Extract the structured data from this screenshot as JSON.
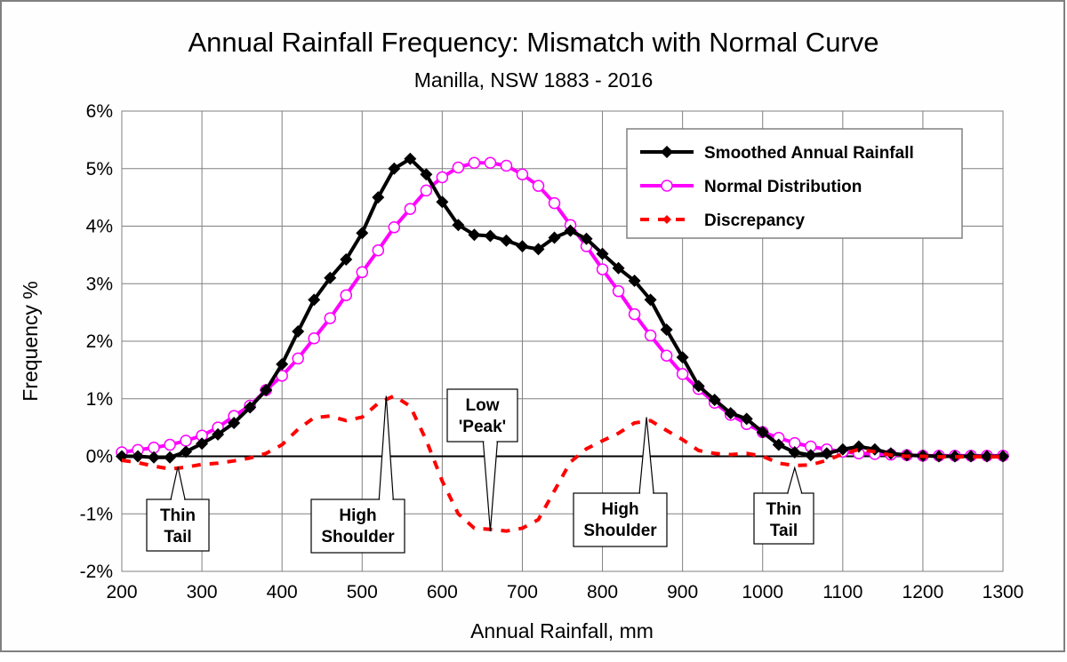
{
  "chart_data": {
    "type": "line",
    "title": "Annual Rainfall Frequency: Mismatch with Normal Curve",
    "subtitle": "Manilla, NSW 1883 - 2016",
    "xlabel": "Annual Rainfall, mm",
    "ylabel": "Frequency %",
    "xlim": [
      200,
      1300
    ],
    "ylim": [
      -2,
      6
    ],
    "x_ticks": [
      200,
      300,
      400,
      500,
      600,
      700,
      800,
      900,
      1000,
      1100,
      1200,
      1300
    ],
    "y_ticks": [
      -2,
      -1,
      0,
      1,
      2,
      3,
      4,
      5,
      6
    ],
    "y_tick_labels": [
      "-2%",
      "-1%",
      "0%",
      "1%",
      "2%",
      "3%",
      "4%",
      "5%",
      "6%"
    ],
    "grid": true,
    "legend_position": "top-right",
    "x": [
      200,
      220,
      240,
      260,
      280,
      300,
      320,
      340,
      360,
      380,
      400,
      420,
      440,
      460,
      480,
      500,
      520,
      540,
      560,
      580,
      600,
      620,
      640,
      660,
      680,
      700,
      720,
      740,
      760,
      780,
      800,
      820,
      840,
      860,
      880,
      900,
      920,
      940,
      960,
      980,
      1000,
      1020,
      1040,
      1060,
      1080,
      1100,
      1120,
      1140,
      1160,
      1180,
      1200,
      1220,
      1240,
      1260,
      1280,
      1300
    ],
    "series": [
      {
        "name": "Smoothed Annual Rainfall",
        "color": "#000000",
        "marker": "diamond",
        "values": [
          0.0,
          0.0,
          -0.02,
          -0.02,
          0.08,
          0.22,
          0.38,
          0.58,
          0.85,
          1.15,
          1.6,
          2.17,
          2.72,
          3.1,
          3.42,
          3.88,
          4.5,
          5.0,
          5.17,
          4.9,
          4.42,
          4.02,
          3.85,
          3.83,
          3.75,
          3.65,
          3.6,
          3.8,
          3.92,
          3.78,
          3.52,
          3.27,
          3.05,
          2.72,
          2.2,
          1.72,
          1.22,
          0.98,
          0.75,
          0.65,
          0.42,
          0.2,
          0.07,
          0.02,
          0.05,
          0.12,
          0.17,
          0.12,
          0.05,
          0.02,
          0.01,
          0.0,
          0.0,
          0.0,
          0.0,
          0.0
        ]
      },
      {
        "name": "Normal Distribution",
        "color": "#ff00ff",
        "marker": "open-circle",
        "values": [
          0.07,
          0.11,
          0.15,
          0.2,
          0.27,
          0.36,
          0.5,
          0.7,
          0.88,
          1.15,
          1.4,
          1.7,
          2.05,
          2.4,
          2.8,
          3.2,
          3.58,
          3.98,
          4.3,
          4.62,
          4.85,
          5.02,
          5.1,
          5.1,
          5.05,
          4.9,
          4.7,
          4.4,
          4.02,
          3.65,
          3.25,
          2.87,
          2.47,
          2.1,
          1.75,
          1.43,
          1.17,
          0.93,
          0.72,
          0.56,
          0.42,
          0.32,
          0.23,
          0.17,
          0.12,
          0.08,
          0.05,
          0.04,
          0.03,
          0.02,
          0.01,
          0.01,
          0.01,
          0.01,
          0.01,
          0.01
        ]
      },
      {
        "name": "Discrepancy",
        "color": "#ff0000",
        "marker": "diamond",
        "dashed": true,
        "values": [
          -0.07,
          -0.11,
          -0.17,
          -0.22,
          -0.19,
          -0.14,
          -0.12,
          -0.08,
          -0.03,
          0.05,
          0.2,
          0.47,
          0.67,
          0.7,
          0.62,
          0.68,
          0.92,
          1.05,
          0.87,
          0.28,
          -0.43,
          -1.0,
          -1.25,
          -1.27,
          -1.3,
          -1.25,
          -1.1,
          -0.6,
          -0.1,
          0.13,
          0.27,
          0.4,
          0.58,
          0.62,
          0.45,
          0.29,
          0.1,
          0.05,
          0.03,
          0.05,
          0.0,
          -0.12,
          -0.16,
          -0.15,
          -0.07,
          0.04,
          0.12,
          0.08,
          0.02,
          0.0,
          0.0,
          -0.01,
          -0.01,
          -0.01,
          -0.01,
          -0.01
        ]
      }
    ],
    "annotations": [
      {
        "lines": [
          "Thin",
          "Tail"
        ],
        "x": 270,
        "y": -0.18
      },
      {
        "lines": [
          "High",
          "Shoulder"
        ],
        "x": 530,
        "y": 1.05
      },
      {
        "lines": [
          "Low",
          "'Peak'"
        ],
        "x": 660,
        "y": -1.3
      },
      {
        "lines": [
          "High",
          "Shoulder"
        ],
        "x": 855,
        "y": 0.68
      },
      {
        "lines": [
          "Thin",
          "Tail"
        ],
        "x": 1040,
        "y": -0.2
      }
    ]
  }
}
